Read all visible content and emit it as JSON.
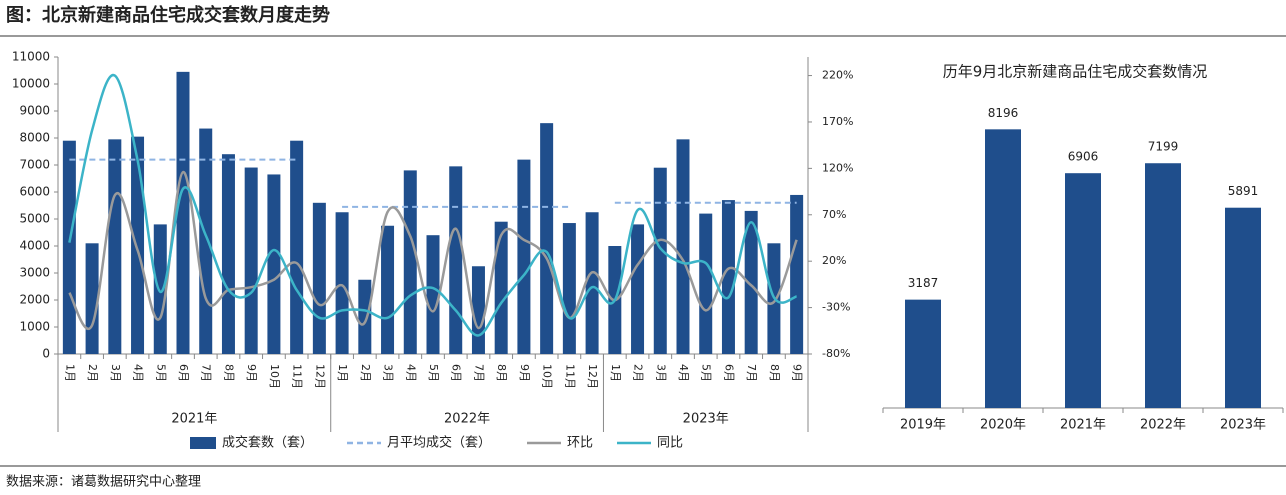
{
  "title": "图：北京新建商品住宅成交套数月度走势",
  "source": "数据来源：诸葛数据研究中心整理",
  "chart_data": [
    {
      "type": "combo",
      "categories": [
        "1月",
        "2月",
        "3月",
        "4月",
        "5月",
        "6月",
        "7月",
        "8月",
        "9月",
        "10月",
        "11月",
        "12月",
        "1月",
        "2月",
        "3月",
        "4月",
        "5月",
        "6月",
        "7月",
        "8月",
        "9月",
        "10月",
        "11月",
        "12月",
        "1月",
        "2月",
        "3月",
        "4月",
        "5月",
        "6月",
        "7月",
        "8月",
        "9月"
      ],
      "groups": [
        "2021年",
        "2022年",
        "2023年"
      ],
      "series": [
        {
          "name": "成交套数（套）",
          "type": "bar",
          "color": "#1f4e8c",
          "values": [
            7900,
            4100,
            7950,
            8050,
            4800,
            10450,
            8350,
            7400,
            6906,
            6650,
            7900,
            5600,
            5250,
            2750,
            4750,
            6800,
            4400,
            6950,
            3250,
            4900,
            7199,
            8550,
            4850,
            5250,
            4000,
            4800,
            6900,
            7950,
            5200,
            5700,
            5300,
            4100,
            5891
          ]
        },
        {
          "name": "月平均成交（套）",
          "type": "dashed",
          "color": "#8fb4e3",
          "values": [
            7200,
            7200,
            7200,
            7200,
            7200,
            7200,
            7200,
            7200,
            7200,
            7200,
            7200,
            null,
            5450,
            5450,
            5450,
            5450,
            5450,
            5450,
            5450,
            5450,
            5450,
            5450,
            5450,
            null,
            5600,
            5600,
            5600,
            5600,
            5600,
            5600,
            5600,
            5600,
            5600
          ]
        },
        {
          "name": "环比",
          "type": "line",
          "axis": "y2",
          "color": "#9a9a9a",
          "values": [
            -14,
            -49,
            91,
            32,
            -41,
            116,
            -20,
            -11,
            -8,
            0,
            18,
            -27,
            -6,
            -46,
            73,
            47,
            -34,
            55,
            -52,
            48,
            43,
            23,
            -41,
            8,
            -22,
            16,
            43,
            21,
            -33,
            12,
            -6,
            -24,
            43
          ]
        },
        {
          "name": "同比",
          "type": "line",
          "axis": "y2",
          "color": "#3cb4c8",
          "values": [
            40,
            161,
            220,
            129,
            -13,
            98,
            48,
            -11,
            -14,
            32,
            -11,
            -41,
            -33,
            -33,
            -41,
            -17,
            -9,
            -33,
            -60,
            -25,
            5,
            30,
            -41,
            -8,
            -22,
            75,
            34,
            18,
            18,
            -19,
            62,
            -19,
            -18
          ]
        }
      ],
      "ylim": [
        0,
        11000
      ],
      "yticks": [
        0,
        1000,
        2000,
        3000,
        4000,
        5000,
        6000,
        7000,
        8000,
        9000,
        10000,
        11000
      ],
      "y2lim": [
        -80,
        240
      ],
      "y2ticks": [
        {
          "value": -80,
          "label": "-80%"
        },
        {
          "value": -30,
          "label": "-30%"
        },
        {
          "value": 20,
          "label": "20%"
        },
        {
          "value": 70,
          "label": "70%"
        },
        {
          "value": 120,
          "label": "120%"
        },
        {
          "value": 170,
          "label": "170%"
        },
        {
          "value": 220,
          "label": "220%"
        }
      ],
      "legend": "bottom"
    },
    {
      "type": "bar",
      "title": "历年9月北京新建商品住宅成交套数情况",
      "categories": [
        "2019年",
        "2020年",
        "2021年",
        "2022年",
        "2023年"
      ],
      "values": [
        3187,
        8196,
        6906,
        7199,
        5891
      ],
      "color": "#1f4e8c",
      "ylim": [
        0,
        9000
      ]
    }
  ]
}
